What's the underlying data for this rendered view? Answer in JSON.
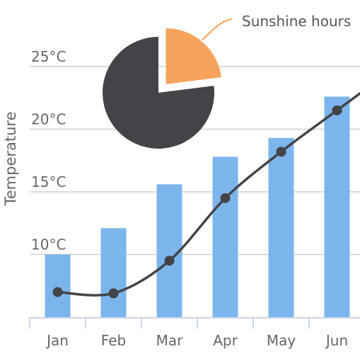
{
  "chart_data": {
    "type": "bar",
    "ylabel": "Temperature",
    "categories": [
      "Jan",
      "Feb",
      "Mar",
      "Apr",
      "May",
      "Jun"
    ],
    "y_tick_labels": [
      "10°C",
      "15°C",
      "20°C",
      "25°C"
    ],
    "y_ticks": [
      10,
      15,
      20,
      25
    ],
    "ylim": [
      5,
      30
    ],
    "grid": true,
    "series": [
      {
        "kind": "bar",
        "values": [
          10.0,
          12.1,
          15.6,
          17.8,
          19.3,
          22.6
        ],
        "color": "#7cb5ec"
      },
      {
        "kind": "line",
        "smooth": true,
        "values": [
          7.0,
          6.9,
          9.5,
          14.5,
          18.2,
          21.5
        ],
        "color": "#434348"
      }
    ],
    "pie": {
      "title": "Sunshine hours",
      "slices": [
        {
          "value": 23,
          "color": "#f7a35c",
          "exploded": true
        },
        {
          "value": 77,
          "color": "#434348",
          "exploded": false
        }
      ],
      "label_color": "#f7a35c"
    }
  }
}
